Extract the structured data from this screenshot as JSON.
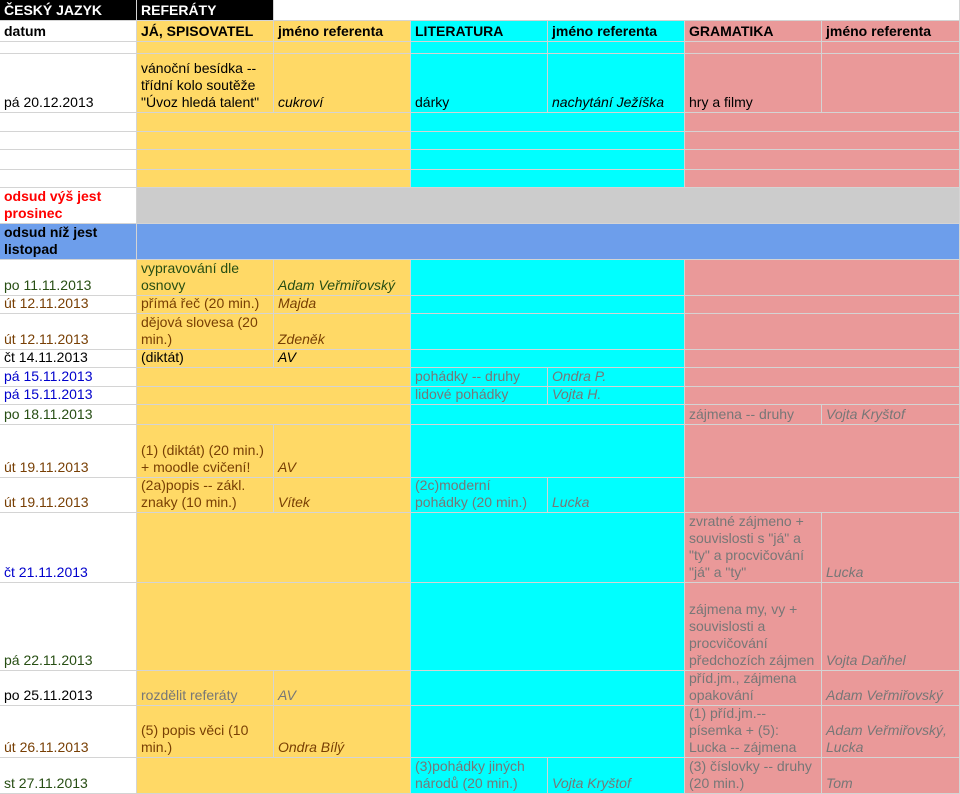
{
  "header": {
    "r1": [
      "ČESKÝ JAZYK",
      "REFERÁTY"
    ],
    "r2": [
      "datum",
      "JÁ, SPISOVATEL",
      "jméno referenta",
      "LITERATURA",
      "jméno referenta",
      "GRAMATIKA",
      "jméno referenta"
    ]
  },
  "dec": {
    "datum": "pá 20.12.2013",
    "spisovatel": "vánoční besídka -- třídní kolo soutěže \"Úvoz hledá talent\"",
    "spis_ref": "cukroví",
    "lit": "dárky",
    "lit_ref": "nachytání Ježíška",
    "gram": "hry a filmy"
  },
  "separators": {
    "above": "odsud výš jest prosinec",
    "below": "odsud níž jest listopad"
  },
  "rows": [
    {
      "datum": "po 11.11.2013",
      "spis": "vypravování dle osnovy",
      "spis_ref": "Adam Veřmiřovský"
    },
    {
      "datum": "út 12.11.2013",
      "spis": "přímá řeč (20 min.)",
      "spis_ref": "Majda"
    },
    {
      "datum": "út 12.11.2013",
      "spis": "dějová slovesa (20 min.)",
      "spis_ref": "Zdeněk"
    },
    {
      "datum": "čt 14.11.2013",
      "spis": "(diktát)",
      "spis_ref": "AV"
    },
    {
      "datum": "pá 15.11.2013",
      "lit": "pohádky -- druhy",
      "lit_ref": "Ondra P."
    },
    {
      "datum": "pá 15.11.2013",
      "lit": "lidové pohádky",
      "lit_ref": "Vojta H."
    },
    {
      "datum": "po 18.11.2013",
      "gram": "zájmena -- druhy",
      "gram_ref": "Vojta Kryštof"
    },
    {
      "datum": "út 19.11.2013",
      "spis": "(1) (diktát) (20 min.) + moodle cvičení!",
      "spis_ref": "AV"
    },
    {
      "datum": "út 19.11.2013",
      "spis": "(2a)popis -- zákl. znaky (10 min.)",
      "spis_ref": "Vítek",
      "lit": "(2c)moderní pohádky (20 min.)",
      "lit_ref": "Lucka"
    },
    {
      "datum": "čt 21.11.2013",
      "gram": "zvratné zájmeno + souvislosti s \"já\" a \"ty\" a procvičování \"já\" a \"ty\"",
      "gram_ref": "Lucka"
    },
    {
      "datum": "pá 22.11.2013",
      "gram": "zájmena my, vy + souvislosti a procvičování předchozích zájmen",
      "gram_ref": "Vojta Daňhel"
    },
    {
      "datum": "po 25.11.2013",
      "spis": "rozdělit referáty",
      "spis_ref": "AV",
      "gram": "příd.jm., zájmena opakování",
      "gram_ref": "Adam Veřmiřovský"
    },
    {
      "datum": "út 26.11.2013",
      "spis": "(5) popis věci (10 min.)",
      "spis_ref": "Ondra Bílý",
      "gram": "(1) příd.jm.-- písemka + (5): Lucka -- zájmena",
      "gram_ref": "Adam Veřmiřovský, Lucka"
    },
    {
      "datum": "st 27.11.2013",
      "lit": "(3)pohádky jiných národů (20 min.)",
      "lit_ref": "Vojta Kryštof",
      "gram": "(3) číslovky -- druhy (20 min.)",
      "gram_ref": "Tom"
    }
  ],
  "colors": {
    "spisovatel": "#ffd966",
    "literatura": "#00ffff",
    "gramatika": "#ea9999",
    "prosinec_row": "#cccccc",
    "listopad_row": "#6d9eeb",
    "header_dark": "#000000"
  }
}
